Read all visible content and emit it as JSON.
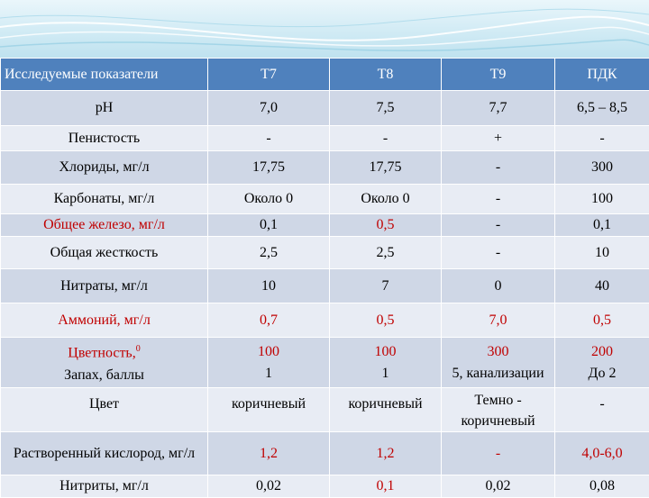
{
  "table": {
    "header": [
      "Исследуемые показатели",
      "Т7",
      "Т8",
      "Т9",
      "ПДК"
    ],
    "rows": [
      {
        "cells": [
          "рН",
          "7,0",
          "7,5",
          "7,7",
          "6,5 – 8,5"
        ]
      },
      {
        "cells": [
          "Пенистость",
          "-",
          "-",
          "+",
          "-"
        ]
      },
      {
        "cells": [
          "Хлориды, мг/л",
          "17,75",
          "17,75",
          "-",
          "300"
        ]
      },
      {
        "cells": [
          "Карбонаты, мг/л",
          "Около 0",
          "Около 0",
          "-",
          "100"
        ]
      },
      {
        "cells": [
          "Общее железо, мг/л",
          "0,1",
          "0,5",
          "-",
          "0,1"
        ]
      },
      {
        "cells": [
          "Общая жесткость",
          "2,5",
          "2,5",
          "-",
          "10"
        ]
      },
      {
        "cells": [
          "Нитраты, мг/л",
          "10",
          "7",
          "0",
          "40"
        ]
      },
      {
        "cells": [
          "Аммоний, мг/л",
          "0,7",
          "0,5",
          "7,0",
          "0,5"
        ]
      },
      {
        "color_label": "Цветность,",
        "color_sup": "0",
        "odor_label": "Запах, баллы",
        "color_values": [
          "100",
          "100",
          "300",
          "200"
        ],
        "odor_values": [
          "1",
          "1",
          "5, канализации",
          "До 2"
        ]
      },
      {
        "cells": [
          "Цвет",
          "коричневый",
          "коричневый",
          "Темно - коричневый",
          "-"
        ]
      },
      {
        "cells": [
          "Растворенный кислород, мг/л",
          "1,2",
          "1,2",
          "-",
          "4,0-6,0"
        ]
      },
      {
        "cells": [
          "Нитриты, мг/л",
          "0,02",
          "0,1",
          "0,02",
          "0,08"
        ]
      }
    ]
  }
}
